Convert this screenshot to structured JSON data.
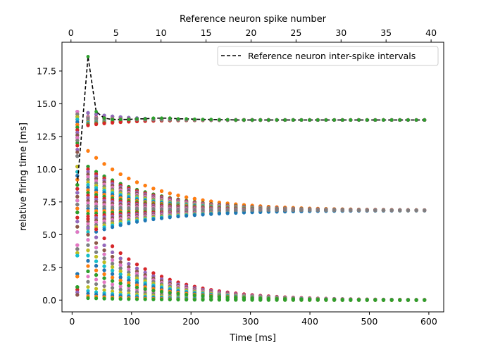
{
  "chart_data": {
    "type": "scatter",
    "title": "",
    "xlabel": "Time [ms]",
    "ylabel": "relative firing time [ms]",
    "x2label": "Reference neuron spike number",
    "xlim": [
      -17,
      625
    ],
    "ylim": [
      -0.9,
      19.7
    ],
    "x2lim": [
      -1.0,
      41.4
    ],
    "xticks": [
      0,
      100,
      200,
      300,
      400,
      500,
      600
    ],
    "xtick_labels": [
      "0",
      "100",
      "200",
      "300",
      "400",
      "500",
      "600"
    ],
    "yticks": [
      0.0,
      2.5,
      5.0,
      7.5,
      10.0,
      12.5,
      15.0,
      17.5
    ],
    "ytick_labels": [
      "0.0",
      "2.5",
      "5.0",
      "7.5",
      "10.0",
      "12.5",
      "15.0",
      "17.5"
    ],
    "x2ticks": [
      0,
      5,
      10,
      15,
      20,
      25,
      30,
      35,
      40
    ],
    "x2tick_labels": [
      "0",
      "5",
      "10",
      "15",
      "20",
      "25",
      "30",
      "35",
      "40"
    ],
    "grid": false,
    "legend": {
      "position": "top-right",
      "entries": [
        "Reference neuron inter-spike intervals"
      ]
    },
    "reference_line": {
      "name": "Reference neuron inter-spike intervals",
      "style": "dashed",
      "color": "#000000",
      "x": [
        8.8,
        26.8,
        40.5,
        54.1,
        67.8,
        81.5,
        95.3,
        109.1,
        122.9,
        136.8,
        150.6,
        164.5,
        178.4,
        192.2,
        206.1,
        219.9,
        233.8,
        247.6,
        261.5,
        275.3,
        289.1,
        302.9,
        316.7,
        330.5,
        344.3,
        358.1,
        371.9,
        385.7,
        399.5,
        413.3,
        427.1,
        440.9,
        454.7,
        468.5,
        482.3,
        496.1,
        509.9,
        523.7,
        537.5,
        551.3,
        565.1,
        578.9,
        592.7
      ],
      "y": [
        8.8,
        18.6,
        14.4,
        13.9,
        13.8,
        13.8,
        13.8,
        13.85,
        13.85,
        13.9,
        13.9,
        13.9,
        13.85,
        13.85,
        13.82,
        13.8,
        13.8,
        13.78,
        13.78,
        13.76,
        13.76,
        13.76,
        13.76,
        13.76,
        13.76,
        13.76,
        13.76,
        13.76,
        13.76,
        13.76,
        13.76,
        13.76,
        13.76,
        13.76,
        13.76,
        13.76,
        13.76,
        13.76,
        13.76,
        13.76,
        13.76,
        13.76,
        13.76
      ]
    },
    "palette": [
      "#1f77b4",
      "#ff7f0e",
      "#2ca02c",
      "#d62728",
      "#9467bd",
      "#8c564b",
      "#e377c2",
      "#7f7f7f",
      "#bcbd22",
      "#17becf"
    ],
    "spike_times_x": [
      8.8,
      26.8,
      40.5,
      54.1,
      67.8,
      81.5,
      95.3,
      109.1,
      122.9,
      136.8,
      150.6,
      164.5,
      178.4,
      192.2,
      206.1,
      219.9,
      233.8,
      247.6,
      261.5,
      275.3,
      289.1,
      302.9,
      316.7,
      330.5,
      344.3,
      358.1,
      371.9,
      385.7,
      399.5,
      413.3,
      427.1,
      440.9,
      454.7,
      468.5,
      482.3,
      496.1,
      509.9,
      523.7,
      537.5,
      551.3,
      565.1,
      578.9,
      592.7
    ],
    "clusters": [
      {
        "name": "",
        "converge_to": 13.76,
        "initial": [
          14.4,
          14.2,
          14.0,
          13.8,
          13.6,
          13.4,
          13.2,
          13.0,
          12.8,
          12.6,
          12.4,
          12.2,
          12.0,
          11.8,
          11.5,
          11.3
        ],
        "mid": [
          14.3,
          14.0,
          13.95,
          13.9,
          13.8,
          13.7,
          13.6,
          13.55,
          13.5,
          13.45,
          13.4,
          13.35
        ],
        "tau": 60,
        "color_offset": 0
      },
      {
        "name": "",
        "converge_to": 6.85,
        "initial": [
          11.0,
          10.2,
          9.8,
          9.5,
          9.2,
          8.8,
          8.5,
          8.2,
          7.9,
          7.6,
          7.3,
          7.0,
          6.7,
          6.3,
          6.0,
          5.6,
          5.2
        ],
        "mid": [
          11.4,
          10.2,
          10.0,
          9.8,
          9.6,
          9.4,
          9.2,
          9.0,
          8.8,
          8.6,
          8.4,
          8.2,
          8.0,
          7.8,
          7.6,
          7.4,
          7.2,
          7.0,
          6.8,
          6.6,
          6.4,
          6.2,
          6.0,
          5.8,
          5.6,
          5.4,
          5.2,
          5.0
        ],
        "tau": 110,
        "color_offset": 3
      },
      {
        "name": "",
        "converge_to": 0.0,
        "initial": [
          4.2,
          3.9,
          3.6,
          3.4,
          2.0,
          1.8,
          1.0,
          0.8,
          0.6,
          0.4
        ],
        "mid": [
          6.2,
          5.5,
          5.0,
          4.6,
          4.2,
          3.8,
          3.4,
          3.0,
          2.6,
          2.2,
          1.8,
          1.4,
          1.0,
          0.7,
          0.5,
          0.3,
          0.15
        ],
        "tau": 100,
        "color_offset": 6
      }
    ]
  }
}
